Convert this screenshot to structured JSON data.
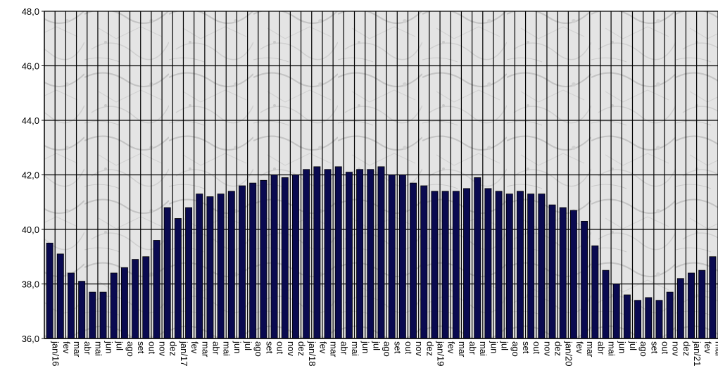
{
  "chart_data": {
    "type": "bar",
    "ylim": [
      36.0,
      48.0
    ],
    "yticks": [
      "36,0",
      "38,0",
      "40,0",
      "42,0",
      "44,0",
      "46,0",
      "48,0"
    ],
    "grid": true,
    "bar_color": "#0a0a50",
    "categories": [
      "jan/16",
      "fev",
      "mar",
      "abr",
      "mai",
      "jun",
      "jul",
      "ago",
      "set",
      "out",
      "nov",
      "dez",
      "jan/17",
      "fev",
      "mar",
      "abr",
      "mai",
      "jun",
      "jul",
      "ago",
      "set",
      "out",
      "nov",
      "dez",
      "jan/18",
      "fev",
      "mar",
      "abr",
      "mai",
      "jun",
      "jul",
      "ago",
      "set",
      "out",
      "nov",
      "dez",
      "jan/19",
      "fev",
      "mar",
      "abr",
      "mai",
      "jun",
      "jul",
      "ago",
      "set",
      "out",
      "nov",
      "dez",
      "jan/20",
      "fev",
      "mar",
      "abr",
      "mai",
      "jun",
      "jul",
      "ago",
      "set",
      "out",
      "nov",
      "dez",
      "jan/21",
      "fev",
      "mar"
    ],
    "values": [
      39.5,
      39.1,
      38.4,
      38.1,
      37.7,
      37.7,
      38.4,
      38.6,
      38.9,
      39.0,
      39.6,
      40.8,
      40.4,
      40.8,
      41.3,
      41.2,
      41.3,
      41.4,
      41.6,
      41.7,
      41.8,
      42.0,
      41.9,
      42.0,
      42.2,
      42.3,
      42.2,
      42.3,
      42.1,
      42.2,
      42.2,
      42.3,
      42.0,
      42.0,
      41.7,
      41.6,
      41.4,
      41.4,
      41.4,
      41.5,
      41.9,
      41.5,
      41.4,
      41.3,
      41.4,
      41.3,
      41.3,
      40.9,
      40.8,
      40.7,
      40.3,
      39.4,
      38.5,
      38.0,
      37.6,
      37.4,
      37.5,
      37.4,
      37.7,
      38.2,
      38.4,
      38.5,
      39.0
    ]
  }
}
